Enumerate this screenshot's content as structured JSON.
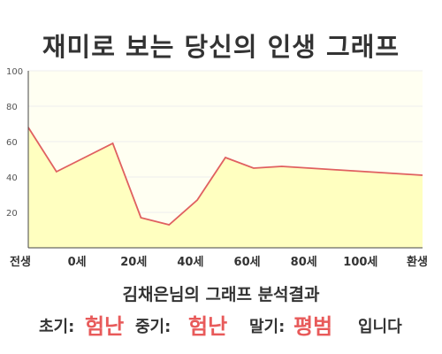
{
  "title": "재미로 보는 당신의 인생 그래프",
  "chart_data": {
    "type": "area",
    "x": [
      0,
      1,
      2,
      3,
      4,
      5,
      6,
      7,
      8,
      9,
      10,
      11,
      12,
      13,
      14
    ],
    "x_tick_labels": [
      "전생",
      "0세",
      "20세",
      "40세",
      "60세",
      "80세",
      "100세",
      "환생"
    ],
    "values": [
      68,
      43,
      51,
      59,
      17,
      13,
      27,
      51,
      45,
      46,
      45,
      44,
      43,
      42,
      41
    ],
    "ylim": [
      0,
      100
    ],
    "y_ticks": [
      20,
      40,
      60,
      80,
      100
    ],
    "y_tick_labels": [
      "20",
      "40",
      "60",
      "80",
      "100"
    ],
    "grid": true,
    "colors": {
      "line": "#e06060",
      "fill": "#ffffc0",
      "background": "#fffff2",
      "grid": "#eeeeee"
    }
  },
  "subtitle": "김채은님의 그래프 분석결과",
  "summary": {
    "early_label": "초기:",
    "early_value": "험난",
    "middle_label": "중기:",
    "middle_value": "험난",
    "late_label": "말기:",
    "late_value": "평범",
    "ending": "입니다",
    "value_color": "#e85a5a"
  }
}
